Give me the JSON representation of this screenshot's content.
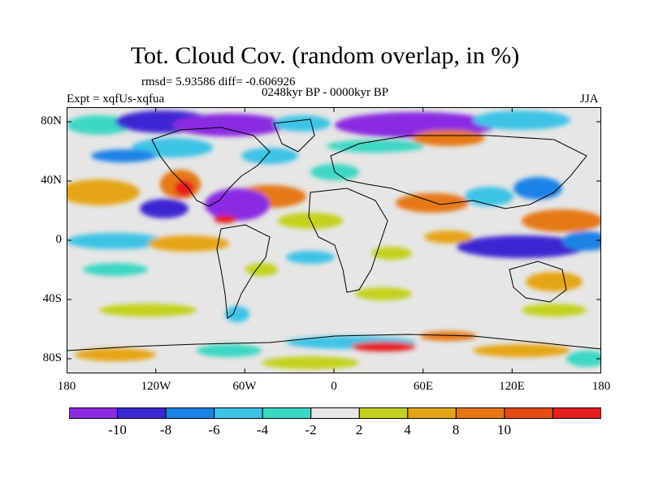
{
  "title": "Tot. Cloud Cov. (random overlap, in %)",
  "stats": "rmsd= 5.93586 diff= -0.606926",
  "period": "0248kyr BP - 0000kyr BP",
  "experiment": "Expt = xqfUs-xqfua",
  "season": "JJA",
  "map": {
    "lat_range": [
      -90,
      90
    ],
    "lon_range": [
      -180,
      180
    ],
    "y_tick_labels": [
      "80N",
      "40N",
      "0",
      "40S",
      "80S"
    ],
    "x_tick_labels": [
      "180",
      "120W",
      "60W",
      "0",
      "60E",
      "120E",
      "180"
    ]
  },
  "colorbar": {
    "colors": [
      "#8a2be2",
      "#3c28d2",
      "#1e82e6",
      "#3cc3e6",
      "#3cd7c3",
      "#e6e6e6",
      "#c3d21e",
      "#e6a514",
      "#e67814",
      "#e64b14",
      "#e61e1e"
    ],
    "labels": [
      "-10",
      "-8",
      "-6",
      "-4",
      "-2",
      "2",
      "4",
      "8",
      "10"
    ]
  }
}
